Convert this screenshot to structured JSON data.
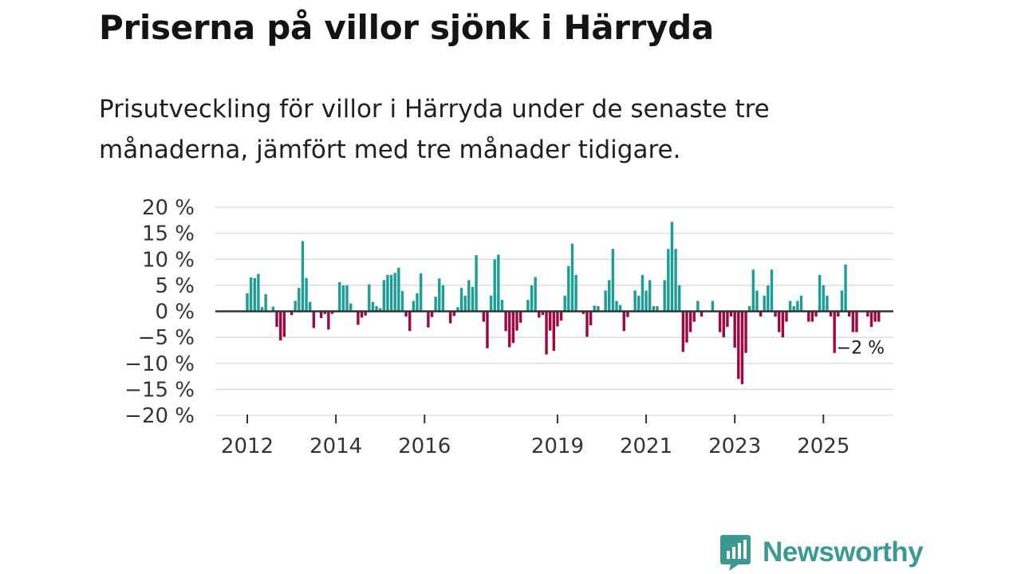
{
  "header": {
    "title": "Priserna på villor sjönk i Härryda",
    "subtitle": "Prisutveckling för villor i Härryda under de senaste tre månaderna, jämfört med tre månader tidigare."
  },
  "chart_data": {
    "type": "bar",
    "title": "Priserna på villor sjönk i Härryda",
    "xlabel": "",
    "ylabel": "",
    "ylim": [
      -20,
      20
    ],
    "y_ticks": [
      20,
      15,
      10,
      5,
      0,
      -5,
      -10,
      -15,
      -20
    ],
    "y_tick_labels": [
      "20 %",
      "15 %",
      "10 %",
      "5 %",
      "0 %",
      "−5 %",
      "−10 %",
      "−15 %",
      "−20 %"
    ],
    "x_ticks": [
      {
        "label": "2012",
        "index": 0
      },
      {
        "label": "2014",
        "index": 24
      },
      {
        "label": "2016",
        "index": 48
      },
      {
        "label": "2019",
        "index": 84
      },
      {
        "label": "2021",
        "index": 108
      },
      {
        "label": "2023",
        "index": 132
      },
      {
        "label": "2025",
        "index": 156
      }
    ],
    "start": "2012-01",
    "unit": "%",
    "positive_color": "#1b9e96",
    "negative_color": "#a0063f",
    "zero_line_color": "#333333",
    "grid_color": "#dddddd",
    "end_label": "−2 %",
    "values": [
      3.5,
      6.5,
      6.4,
      7.2,
      0.8,
      3.3,
      0,
      0.9,
      -3.0,
      -5.6,
      -4.9,
      0,
      -0.7,
      2.0,
      4.5,
      13.5,
      6.4,
      1.8,
      -3.2,
      0,
      -1.3,
      -0.5,
      -3.5,
      -0.5,
      0,
      5.6,
      5.0,
      5.0,
      1.5,
      0,
      -2.6,
      -1.2,
      -0.8,
      5.2,
      1.8,
      1.0,
      0.6,
      6.0,
      7.0,
      7.0,
      7.4,
      8.4,
      3.9,
      -1.0,
      -3.8,
      2.0,
      3.5,
      7.3,
      0,
      -3.1,
      -1.1,
      2.8,
      6.3,
      5.0,
      0,
      -2.3,
      -0.9,
      0.8,
      4.5,
      3.0,
      6.0,
      4.7,
      10.8,
      0,
      -2.0,
      -7.1,
      3.0,
      10.0,
      10.9,
      2.2,
      -3.8,
      -6.9,
      -6.1,
      -3.7,
      -2.2,
      0,
      2.2,
      5.0,
      6.6,
      -1.2,
      -0.7,
      -8.3,
      -3.7,
      -7.6,
      -2.9,
      -1.8,
      3.0,
      8.7,
      13.0,
      7.0,
      0,
      -0.5,
      -4.9,
      -2.7,
      1.1,
      1.0,
      0,
      4.0,
      6.0,
      12.0,
      2.0,
      1.2,
      -3.8,
      -1.1,
      0,
      4.0,
      3.0,
      7.0,
      4.0,
      6.0,
      1.0,
      1.0,
      0,
      6.0,
      12.0,
      17.2,
      12.0,
      5.0,
      -7.8,
      -6.0,
      -4.0,
      -2.0,
      2.0,
      -1.0,
      0,
      0,
      2.0,
      0,
      -4.0,
      -5.0,
      -3.0,
      -1.0,
      -7.0,
      -13.0,
      -14.0,
      -8.0,
      1.0,
      8.0,
      4.0,
      -1.0,
      3.0,
      5.0,
      8.0,
      -1.0,
      -4.0,
      -5.0,
      -2.0,
      2.0,
      1.0,
      2.0,
      3.0,
      0,
      -2.0,
      -2.0,
      -1.0,
      7.0,
      5.0,
      3.0,
      -1.0,
      -8.0,
      -1.0,
      4.0,
      9.0,
      -1.0,
      -4.0,
      -4.0,
      0,
      0,
      -1.0,
      -3.0,
      -2.0,
      -2.0
    ]
  },
  "brand": {
    "name": "Newsworthy",
    "icon": "newsworthy-logo-icon",
    "color": "#3a9a92"
  }
}
